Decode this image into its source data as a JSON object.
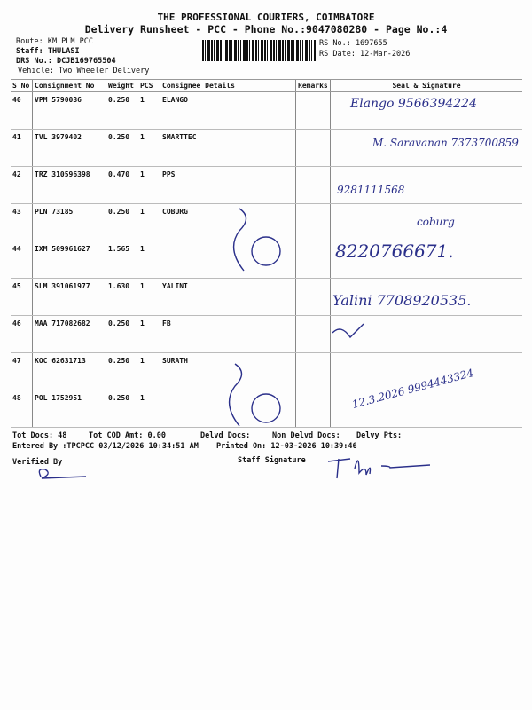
{
  "header": {
    "company": "THE PROFESSIONAL COURIERS, COIMBATORE",
    "subtitle": "Delivery Runsheet - PCC - Phone No.:9047080280 - Page No.:4",
    "route": "Route: KM PLM PCC",
    "staff": "Staff: THULASI",
    "drs": "DRS No.: DCJB169765504",
    "vehicle": "Vehicle: Two Wheeler Delivery",
    "rs_no": "RS No.: 1697655",
    "rs_date": "RS Date: 12-Mar-2026"
  },
  "columns": [
    "S No",
    "Consignment No",
    "Weight",
    "PCS",
    "Consignee Details",
    "Remarks",
    "Seal & Signature"
  ],
  "rows": [
    {
      "sno": "40",
      "cn": "VPM 5790036",
      "wt": "0.250",
      "pcs": "1",
      "name": "ELANGO"
    },
    {
      "sno": "41",
      "cn": "TVL 3979402",
      "wt": "0.250",
      "pcs": "1",
      "name": "SMARTTEC"
    },
    {
      "sno": "42",
      "cn": "TRZ 310596398",
      "wt": "0.470",
      "pcs": "1",
      "name": "PPS"
    },
    {
      "sno": "43",
      "cn": "PLN 73185",
      "wt": "0.250",
      "pcs": "1",
      "name": "COBURG"
    },
    {
      "sno": "44",
      "cn": "IXM 509961627",
      "wt": "1.565",
      "pcs": "1",
      "name": ""
    },
    {
      "sno": "45",
      "cn": "SLM 391061977",
      "wt": "1.630",
      "pcs": "1",
      "name": "YALINI"
    },
    {
      "sno": "46",
      "cn": "MAA 717082682",
      "wt": "0.250",
      "pcs": "1",
      "name": "FB"
    },
    {
      "sno": "47",
      "cn": "KOC 62631713",
      "wt": "0.250",
      "pcs": "1",
      "name": "SURATH"
    },
    {
      "sno": "48",
      "cn": "POL 1752951",
      "wt": "0.250",
      "pcs": "1",
      "name": ""
    }
  ],
  "handwriting": {
    "r40": "Elango 9566394224",
    "r41": "M. Saravanan 7373700859",
    "r42": "9281111568",
    "r43": "coburg",
    "r44": "8220766671.",
    "r45": "Yalini 7708920535.",
    "r48": "12.3.2026 9994443324"
  },
  "footer": {
    "tot_docs": "Tot Docs:  48",
    "cod": "Tot COD Amt:    0.00",
    "delvd": "Delvd Docs:",
    "non_delvd": "Non Delvd Docs:",
    "pts": "Delvy Pts:",
    "entered": "Entered By :TPCPCC 03/12/2026 10:34:51 AM",
    "printed": "Printed On: 12-03-2026 10:39:46",
    "verified": "Verified By",
    "staff_sig": "Staff Signature"
  }
}
